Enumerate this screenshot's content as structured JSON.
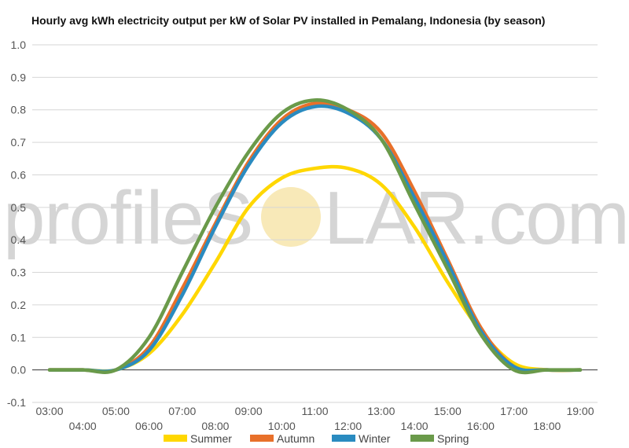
{
  "watermark": {
    "left_text": "profileS",
    "right_text": "LAR.com",
    "sun_color": "#f8e9b8"
  },
  "chart_data": {
    "type": "line",
    "title": "Hourly avg kWh electricity output per kW of Solar PV installed in Pemalang, Indonesia (by season)",
    "xlabel": "",
    "ylabel": "",
    "x_hours": [
      3,
      4,
      5,
      6,
      7,
      8,
      9,
      10,
      11,
      12,
      13,
      14,
      15,
      16,
      17,
      18,
      19
    ],
    "x_tick_labels": [
      "03:00",
      "04:00",
      "05:00",
      "06:00",
      "07:00",
      "08:00",
      "09:00",
      "10:00",
      "11:00",
      "12:00",
      "13:00",
      "14:00",
      "15:00",
      "16:00",
      "17:00",
      "18:00",
      "19:00"
    ],
    "ylim": [
      -0.1,
      1.0
    ],
    "y_ticks": [
      "-0.1",
      "0.0",
      "0.1",
      "0.2",
      "0.3",
      "0.4",
      "0.5",
      "0.6",
      "0.7",
      "0.8",
      "0.9",
      "1.0"
    ],
    "grid": true,
    "legend_position": "bottom",
    "series": [
      {
        "name": "Summer",
        "color": "#FFD700",
        "values": [
          0.0,
          0.0,
          0.0,
          0.05,
          0.17,
          0.33,
          0.5,
          0.59,
          0.62,
          0.62,
          0.57,
          0.44,
          0.27,
          0.12,
          0.02,
          0.0,
          0.0
        ]
      },
      {
        "name": "Autumn",
        "color": "#E8702A",
        "values": [
          0.0,
          0.0,
          0.0,
          0.07,
          0.25,
          0.45,
          0.64,
          0.77,
          0.82,
          0.8,
          0.73,
          0.55,
          0.34,
          0.13,
          0.01,
          0.0,
          0.0
        ]
      },
      {
        "name": "Winter",
        "color": "#2A8BC0",
        "values": [
          0.0,
          0.0,
          0.0,
          0.06,
          0.23,
          0.44,
          0.63,
          0.76,
          0.81,
          0.79,
          0.71,
          0.53,
          0.33,
          0.12,
          0.01,
          0.0,
          0.0
        ]
      },
      {
        "name": "Spring",
        "color": "#6A9A4A",
        "values": [
          0.0,
          0.0,
          0.0,
          0.1,
          0.3,
          0.5,
          0.67,
          0.79,
          0.83,
          0.8,
          0.71,
          0.51,
          0.31,
          0.11,
          0.0,
          0.0,
          0.0
        ]
      }
    ]
  }
}
